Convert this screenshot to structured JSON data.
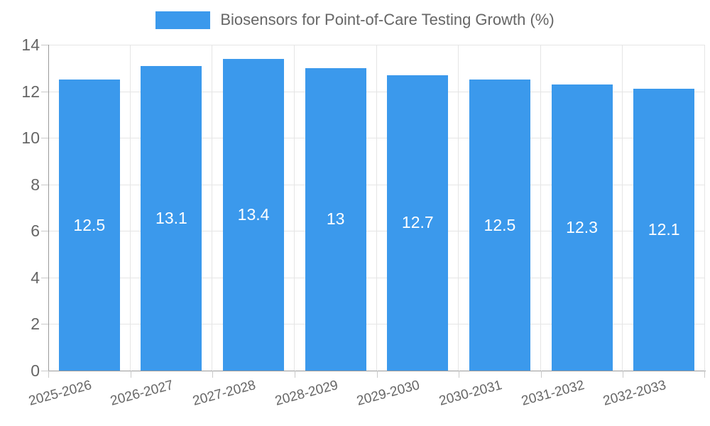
{
  "chart_data": {
    "type": "bar",
    "title": "Biosensors for Point-of-Care Testing Growth (%)",
    "categories": [
      "2025-2026",
      "2026-2027",
      "2027-2028",
      "2028-2029",
      "2029-2030",
      "2030-2031",
      "2031-2032",
      "2032-2033"
    ],
    "values": [
      12.5,
      13.1,
      13.4,
      13,
      12.7,
      12.5,
      12.3,
      12.1
    ],
    "value_labels": [
      "12.5",
      "13.1",
      "13.4",
      "13",
      "12.7",
      "12.5",
      "12.3",
      "12.1"
    ],
    "xlabel": "",
    "ylabel": "",
    "ylim": [
      0,
      14
    ],
    "ytick_step": 2,
    "ytick_labels": [
      "0",
      "2",
      "4",
      "6",
      "8",
      "10",
      "12",
      "14"
    ],
    "legend_position": "top",
    "grid": true,
    "value_label_position": "center-of-bar"
  },
  "colors": {
    "bar": "#3b99ec",
    "grid": "#e5e5e5",
    "axis": "#9a9a9a",
    "tick": "#c9c9c9",
    "text": "#666666",
    "value_label": "#ffffff",
    "background": "#ffffff"
  }
}
